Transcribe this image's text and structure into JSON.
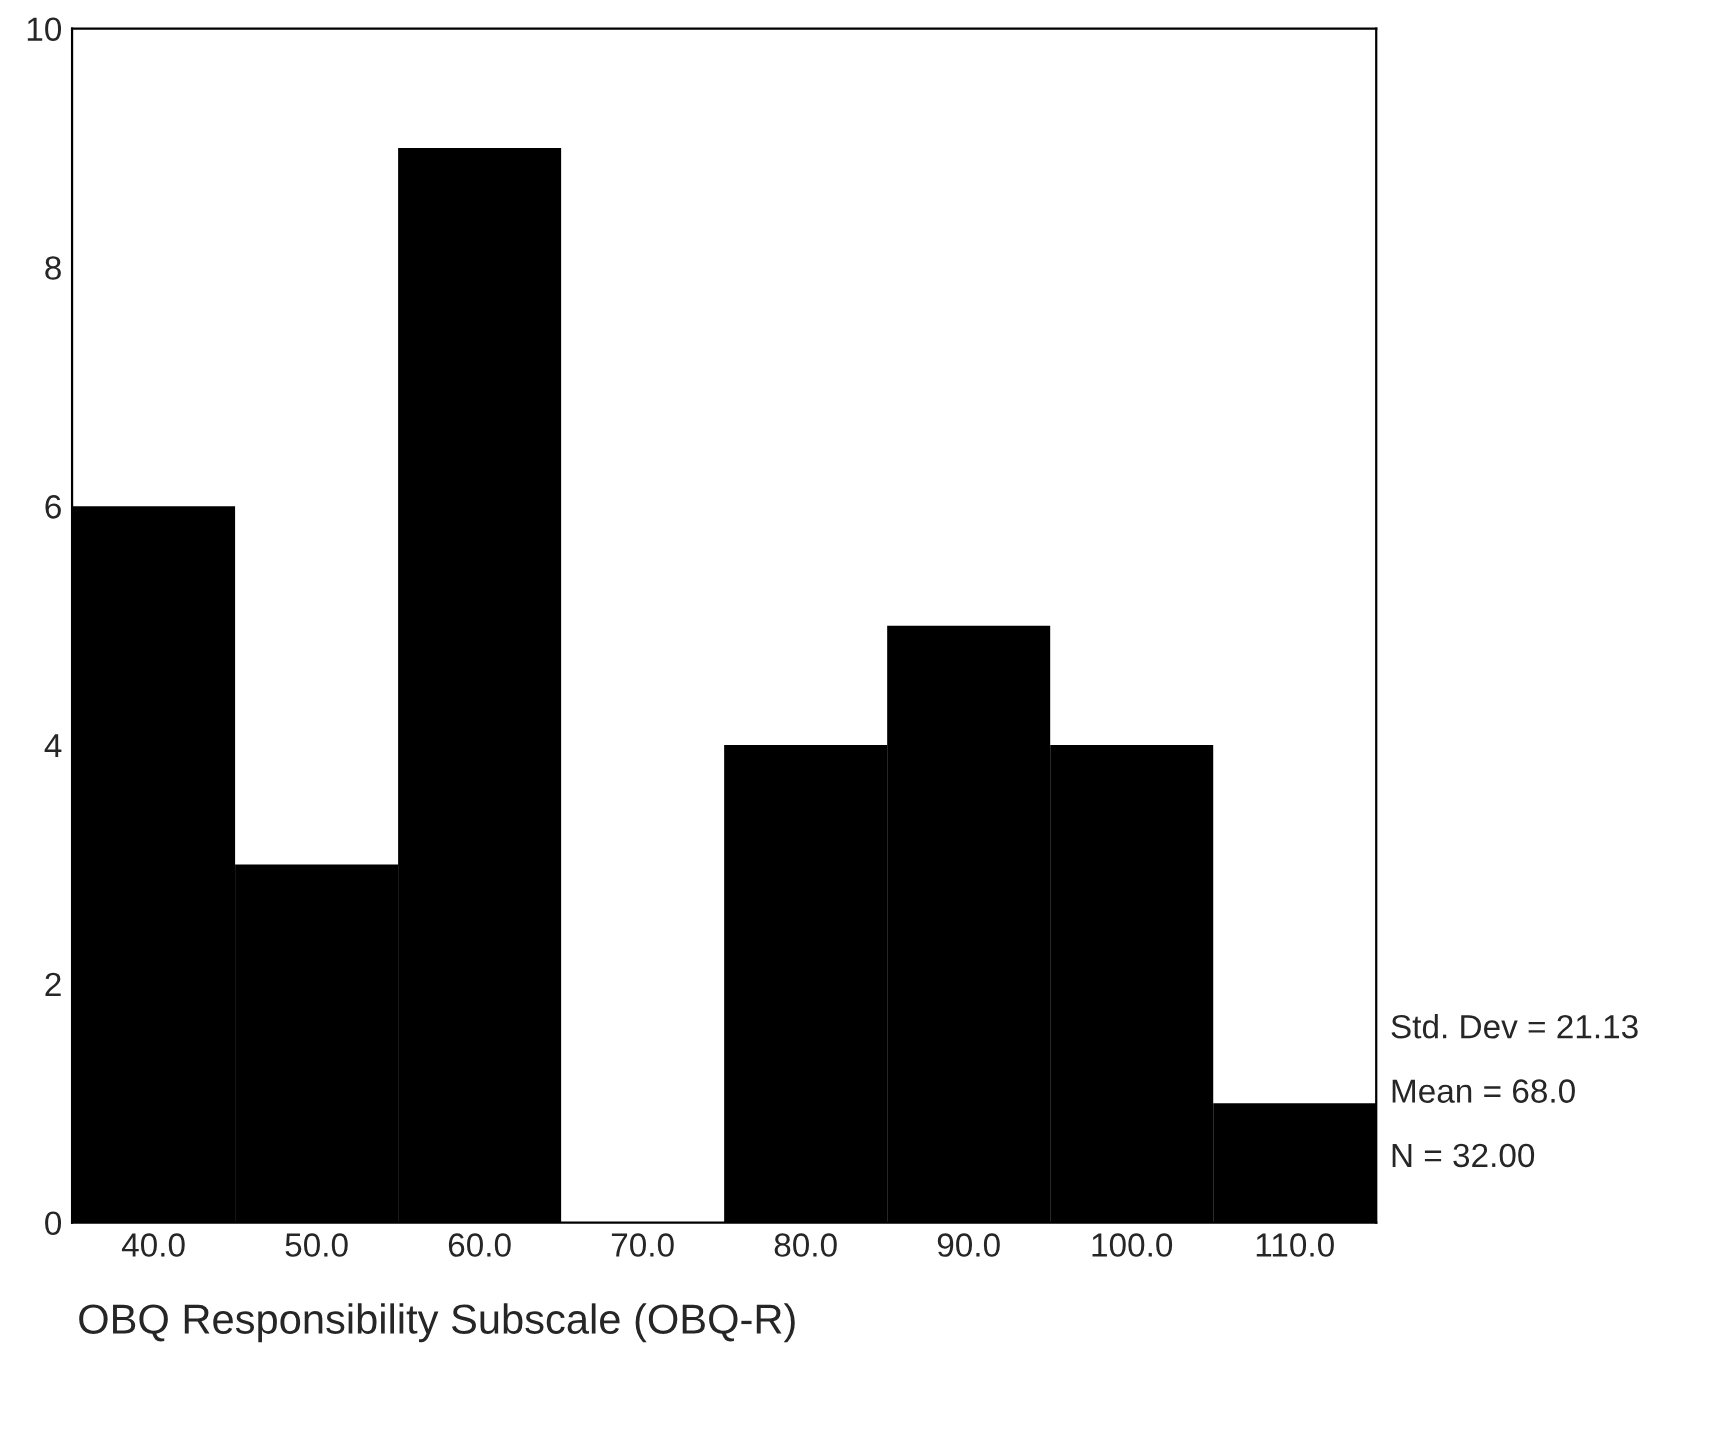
{
  "chart_data": {
    "type": "histogram",
    "xlabel": "OBQ Responsibility Subscale (OBQ-R)",
    "bins": [
      35,
      45,
      55,
      65,
      75,
      85,
      95,
      105,
      115
    ],
    "values": [
      6,
      3,
      9,
      0,
      4,
      5,
      4,
      1
    ],
    "color": "#000000",
    "xlim": [
      35,
      115
    ],
    "xticks": [
      {
        "value": 40,
        "label": "40.0"
      },
      {
        "value": 50,
        "label": "50.0"
      },
      {
        "value": 60,
        "label": "60.0"
      },
      {
        "value": 70,
        "label": "70.0"
      },
      {
        "value": 80,
        "label": "80.0"
      },
      {
        "value": 90,
        "label": "90.0"
      },
      {
        "value": 100,
        "label": "100.0"
      },
      {
        "value": 110,
        "label": "110.0"
      }
    ],
    "ylim": [
      0,
      10
    ],
    "yticks": [
      0,
      2,
      4,
      6,
      8,
      10
    ],
    "grid": false,
    "legend": false,
    "annotations": [
      "Std. Dev = 21.13",
      "Mean = 68.0",
      "N = 32.00"
    ]
  }
}
